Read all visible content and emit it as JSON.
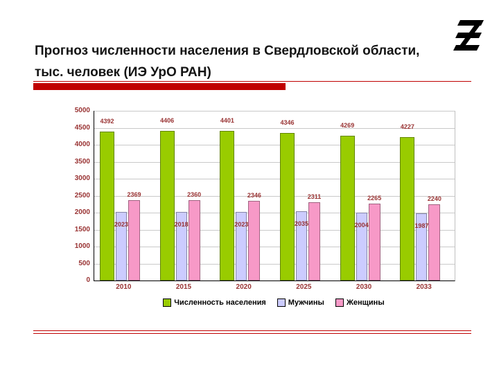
{
  "slide": {
    "title_line1": "Прогноз  численности населения в Свердловской области,",
    "title_line2": "тыс. человек (ИЭ УрО РАН)",
    "accent_color": "#c00000"
  },
  "chart_data": {
    "type": "bar",
    "title": "Прогноз численности населения в Свердловской области, тыс. человек (ИЭ УрО РАН)",
    "categories": [
      "2010",
      "2015",
      "2020",
      "2025",
      "2030",
      "2033"
    ],
    "series": [
      {
        "name": "Численность населения",
        "color": "#99cc00",
        "values": [
          4392,
          4406,
          4401,
          4346,
          4269,
          4227
        ]
      },
      {
        "name": "Мужчины",
        "color": "#ccccff",
        "values": [
          2023,
          2018,
          2023,
          2035,
          2004,
          1987
        ]
      },
      {
        "name": "Женщины",
        "color": "#f799c7",
        "values": [
          2369,
          2360,
          2346,
          2311,
          2265,
          2240
        ]
      }
    ],
    "xlabel": "",
    "ylabel": "",
    "ylim": [
      0,
      5000
    ],
    "yticks": [
      0,
      500,
      1000,
      1500,
      2000,
      2500,
      3000,
      3500,
      4000,
      4500,
      5000
    ],
    "grid": true,
    "legend_position": "bottom",
    "label_color": "#993333"
  }
}
